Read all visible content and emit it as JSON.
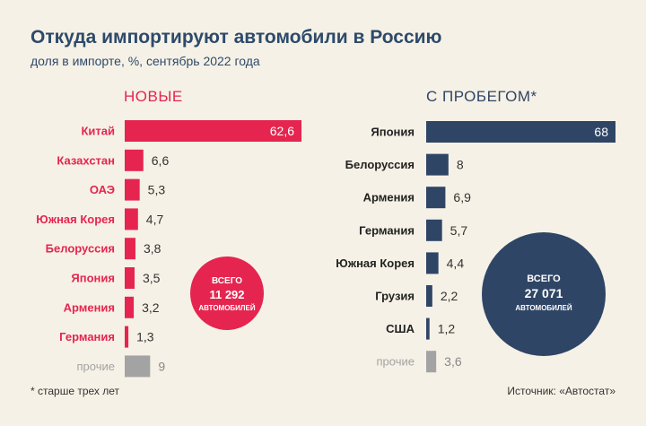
{
  "title": "Откуда импортируют автомобили в Россию",
  "subtitle": "доля в импорте, %, сентябрь 2022 года",
  "footnote": "* старше трех лет",
  "source": "Источник: «Автостат»",
  "colors": {
    "new": "#e5254f",
    "used": "#2f4566",
    "other": "#a3a3a3",
    "bg": "#f6f1e6"
  },
  "chart_data": [
    {
      "type": "bar",
      "title": "НОВЫЕ",
      "categories": [
        "Китай",
        "Казахстан",
        "ОАЭ",
        "Южная Корея",
        "Белоруссия",
        "Япония",
        "Армения",
        "Германия",
        "прочие"
      ],
      "values": [
        62.6,
        6.6,
        5.3,
        4.7,
        3.8,
        3.5,
        3.2,
        1.3,
        9
      ],
      "value_labels": [
        "62,6",
        "6,6",
        "5,3",
        "4,7",
        "3,8",
        "3,5",
        "3,2",
        "1,3",
        "9"
      ],
      "total": {
        "line1": "ВСЕГО",
        "line2": "11 292",
        "line3": "АВТОМОБИЛЕЙ"
      },
      "orientation": "horizontal",
      "grid": false
    },
    {
      "type": "bar",
      "title": "С ПРОБЕГОМ*",
      "categories": [
        "Япония",
        "Белоруссия",
        "Армения",
        "Германия",
        "Южная Корея",
        "Грузия",
        "США",
        "прочие"
      ],
      "values": [
        68,
        8,
        6.9,
        5.7,
        4.4,
        2.2,
        1.2,
        3.6
      ],
      "value_labels": [
        "68",
        "8",
        "6,9",
        "5,7",
        "4,4",
        "2,2",
        "1,2",
        "3,6"
      ],
      "total": {
        "line1": "ВСЕГО",
        "line2": "27 071",
        "line3": "АВТОМОБИЛЕЙ"
      },
      "orientation": "horizontal",
      "grid": false
    }
  ]
}
